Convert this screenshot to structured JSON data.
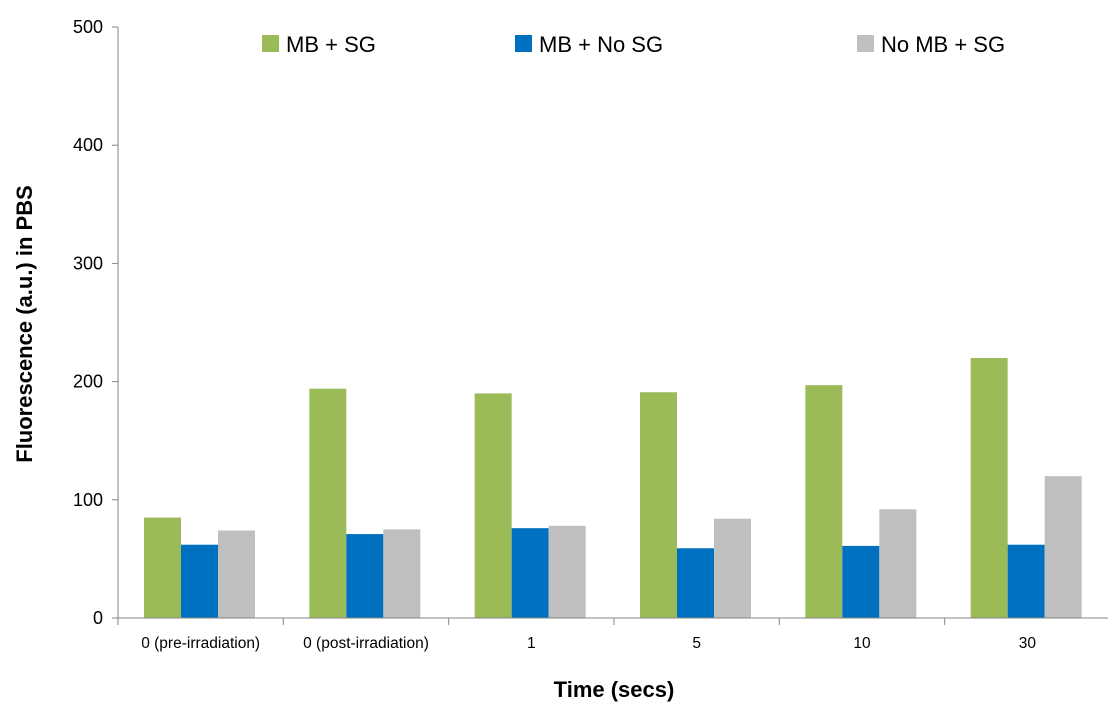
{
  "chart_data": {
    "type": "bar",
    "title": "",
    "xlabel": "Time (secs)",
    "ylabel": "Fluorescence (a.u.) in PBS",
    "ylim": [
      0,
      500
    ],
    "yticks": [
      0,
      100,
      200,
      300,
      400,
      500
    ],
    "grid": false,
    "legend_position": "top",
    "categories": [
      "0 (pre-irradiation)",
      "0 (post-irradiation)",
      "1",
      "5",
      "10",
      "30"
    ],
    "series": [
      {
        "name": "MB + SG",
        "color": "#9bbb59",
        "values": [
          85,
          194,
          190,
          191,
          197,
          220
        ]
      },
      {
        "name": "MB + No SG",
        "color": "#0070c0",
        "values": [
          62,
          71,
          76,
          59,
          61,
          62
        ]
      },
      {
        "name": "No MB + SG",
        "color": "#bfbfbf",
        "values": [
          74,
          75,
          78,
          84,
          92,
          120
        ]
      }
    ]
  }
}
